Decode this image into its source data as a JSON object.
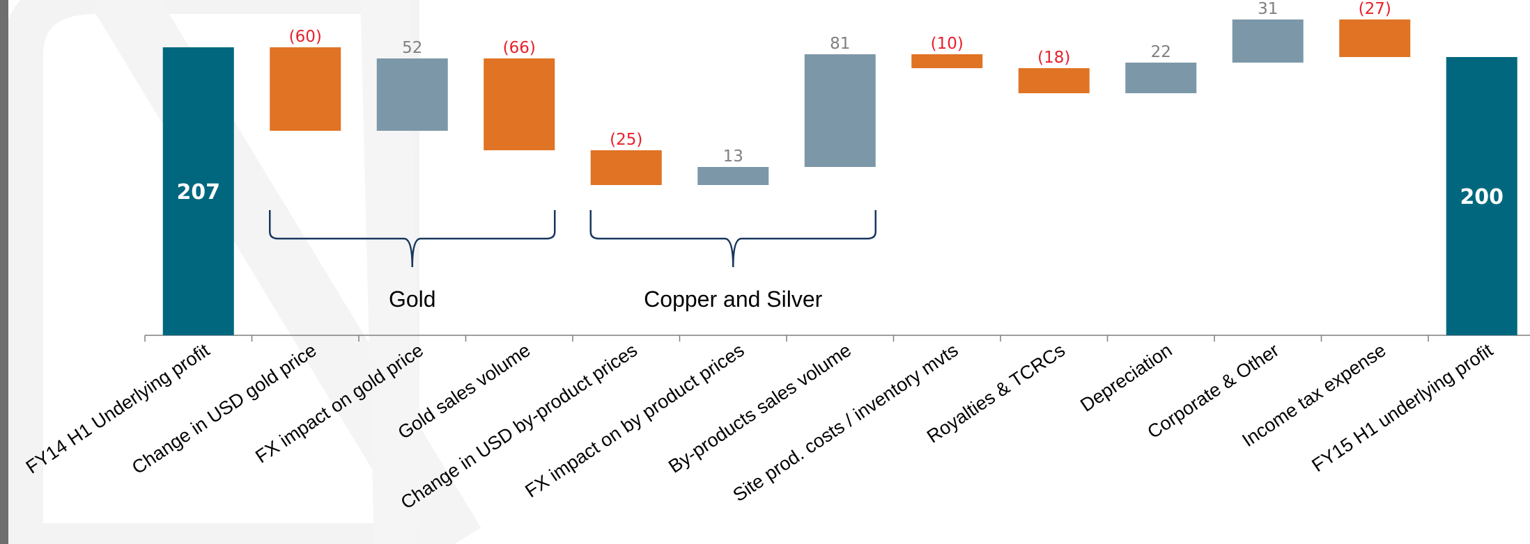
{
  "chart_data": {
    "type": "bar",
    "subtype": "waterfall",
    "categories": [
      "FY14 H1 Underlying profit",
      "Change in USD gold price",
      "FX impact on gold price",
      "Gold sales volume",
      "Change in USD by-product prices",
      "FX impact on by product prices",
      "By-products sales volume",
      "Site prod. costs / inventory mvts",
      "Royalties & TCRCs",
      "Depreciation",
      "Corporate & Other",
      "Income tax expense",
      "FY15 H1 underlying profit"
    ],
    "values": [
      207,
      -60,
      52,
      -66,
      -25,
      13,
      81,
      -10,
      -18,
      22,
      31,
      -27,
      200
    ],
    "value_labels": [
      "207",
      "(60)",
      "52",
      "(66)",
      "(25)",
      "13",
      "81",
      "(10)",
      "(18)",
      "22",
      "31",
      "(27)",
      "200"
    ],
    "kinds": [
      "total",
      "decrease",
      "increase",
      "decrease",
      "decrease",
      "increase",
      "increase",
      "decrease",
      "decrease",
      "increase",
      "increase",
      "decrease",
      "total"
    ],
    "groups": [
      {
        "label": "Gold",
        "from_index": 1,
        "to_index": 3
      },
      {
        "label": "Copper and Silver",
        "from_index": 4,
        "to_index": 6
      }
    ],
    "colors": {
      "total": "#00677f",
      "increase": "#7c98a8",
      "decrease": "#e07324",
      "negative_label": "#e8202a",
      "positive_label": "#7f7f7f",
      "bracket": "#17375e",
      "axis": "#7f7f7f"
    },
    "ylim": [
      0,
      207
    ],
    "grid": false,
    "legend": "none"
  }
}
